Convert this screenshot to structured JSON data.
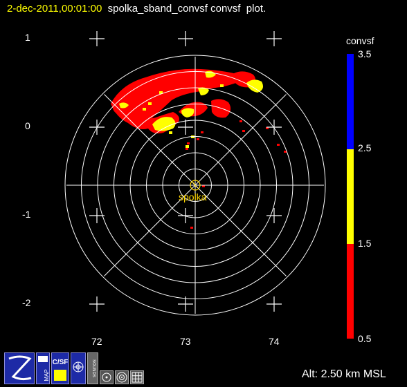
{
  "header": {
    "datetime": "2-dec-2011,00:01:00",
    "title_rest": "  spolka_sband_convsf convsf  plot."
  },
  "y_axis_labels": [
    "1",
    "0",
    "-1",
    "-2"
  ],
  "x_axis_labels": [
    "72",
    "73",
    "74"
  ],
  "radar": {
    "station_label": "spolka"
  },
  "colorbar": {
    "title": "convsf",
    "labels": [
      "3.5",
      "2.5",
      "1.5",
      "0.5"
    ],
    "colors": {
      "high": "#0000ff",
      "mid": "#ffff00",
      "low": "#ff0000"
    }
  },
  "footer": {
    "altitude": "Alt: 2.50 km MSL"
  },
  "toolbar": {
    "z_label": "Z",
    "map_label": "MAP",
    "csf_label": "C/SF",
    "sounds_label": "SOUNDS"
  },
  "icons": [
    "z-icon",
    "map-icon",
    "csf-icon",
    "sound-icon",
    "bounds-icon",
    "circle-dot-icon",
    "target-icon",
    "grid-icon"
  ]
}
